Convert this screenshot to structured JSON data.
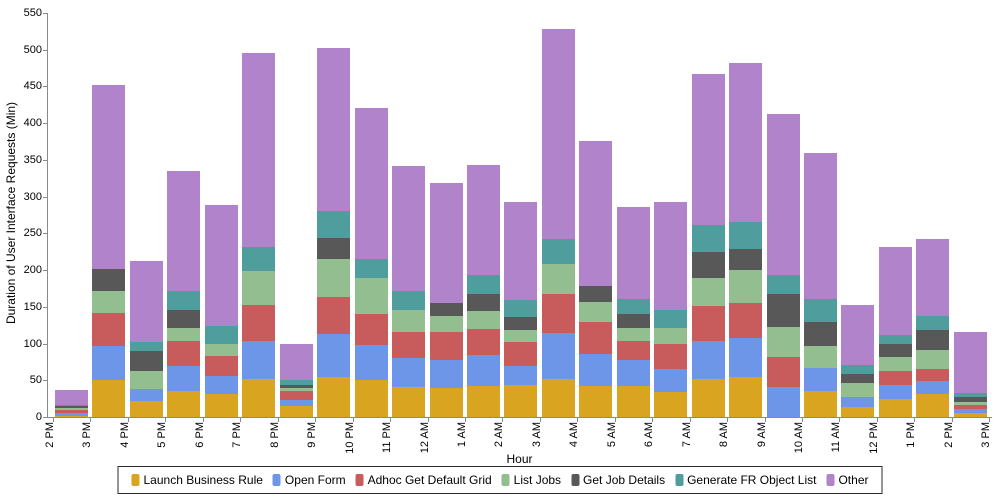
{
  "chart_data": {
    "type": "bar",
    "variant": "stacked-vertical",
    "title": "",
    "xlabel": "Hour",
    "ylabel": "Duration of User Interface Requests (Min)",
    "ylim": [
      0,
      550
    ],
    "ytick_step": 50,
    "grid": false,
    "legend_position": "bottom",
    "categories": [
      "2 PM",
      "3 PM",
      "4 PM",
      "5 PM",
      "6 PM",
      "7 PM",
      "8 PM",
      "9 PM",
      "10 PM",
      "11 PM",
      "12 AM",
      "1 AM",
      "2 AM",
      "3 AM",
      "4 AM",
      "5 AM",
      "6 AM",
      "7 AM",
      "8 AM",
      "9 AM",
      "10 AM",
      "11 AM",
      "12 PM",
      "1 PM",
      "2 PM"
    ],
    "trailing_axis_label": "3 PM",
    "series": [
      {
        "name": "Launch Business Rule",
        "color": "#D9A521",
        "values": [
          1,
          50,
          22,
          35,
          31,
          52,
          15,
          55,
          51,
          41,
          39,
          42,
          43,
          52,
          42,
          42,
          34,
          52,
          54,
          0,
          35,
          14,
          25,
          31,
          6
        ]
      },
      {
        "name": "Open Form",
        "color": "#6D95E8",
        "values": [
          5,
          47,
          16,
          34,
          25,
          52,
          8,
          58,
          47,
          39,
          39,
          42,
          27,
          63,
          44,
          36,
          32,
          52,
          54,
          41,
          32,
          13,
          19,
          18,
          5
        ]
      },
      {
        "name": "Adhoc Get Default Grid",
        "color": "#C85B5B",
        "values": [
          3,
          45,
          0,
          34,
          27,
          48,
          12,
          51,
          42,
          36,
          38,
          36,
          32,
          53,
          43,
          25,
          34,
          47,
          47,
          40,
          0,
          0,
          19,
          16,
          5
        ]
      },
      {
        "name": "List Jobs",
        "color": "#93BE8F",
        "values": [
          3,
          30,
          25,
          18,
          16,
          47,
          5,
          51,
          49,
          30,
          21,
          24,
          16,
          40,
          27,
          18,
          21,
          38,
          45,
          42,
          29,
          19,
          18,
          26,
          5
        ]
      },
      {
        "name": "Get Job Details",
        "color": "#585858",
        "values": [
          3,
          30,
          27,
          25,
          0,
          0,
          3,
          28,
          0,
          0,
          18,
          23,
          18,
          0,
          23,
          19,
          0,
          36,
          29,
          45,
          34,
          13,
          19,
          28,
          6
        ]
      },
      {
        "name": "Generate FR Object List",
        "color": "#4F9D9D",
        "values": [
          2,
          0,
          12,
          25,
          25,
          32,
          8,
          37,
          26,
          25,
          0,
          26,
          23,
          35,
          0,
          20,
          24,
          37,
          37,
          25,
          31,
          12,
          12,
          18,
          5
        ]
      },
      {
        "name": "Other",
        "color": "#B183CB",
        "values": [
          20,
          250,
          111,
          164,
          164,
          264,
          49,
          222,
          206,
          171,
          164,
          150,
          134,
          285,
          197,
          126,
          148,
          205,
          216,
          219,
          198,
          82,
          120,
          106,
          84
        ]
      }
    ],
    "totals": [
      37,
      452,
      213,
      335,
      288,
      495,
      100,
      502,
      421,
      342,
      319,
      343,
      293,
      528,
      376,
      286,
      293,
      467,
      482,
      412,
      359,
      153,
      232,
      243,
      116
    ]
  }
}
